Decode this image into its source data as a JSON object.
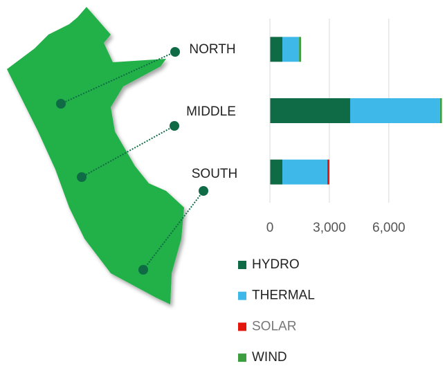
{
  "chart_data": {
    "type": "stacked_barh",
    "categories": [
      "NORTH",
      "MIDDLE",
      "SOUTH"
    ],
    "series": [
      {
        "name": "HYDRO",
        "color": "#0f6b45",
        "values": [
          630,
          4050,
          630
        ]
      },
      {
        "name": "THERMAL",
        "color": "#3db8e8",
        "values": [
          840,
          4530,
          2270
        ]
      },
      {
        "name": "SOLAR",
        "color": "#e3160b",
        "values": [
          0,
          0,
          100
        ]
      },
      {
        "name": "WIND",
        "color": "#3d9e3f",
        "values": [
          100,
          100,
          0
        ]
      }
    ],
    "xlim": [
      0,
      8800
    ],
    "xticks": [
      0,
      {
        "value": 3000,
        "label": "3,000"
      },
      {
        "value": 6000,
        "label": "6,000"
      }
    ],
    "grid": true,
    "legend": "bottom"
  }
}
